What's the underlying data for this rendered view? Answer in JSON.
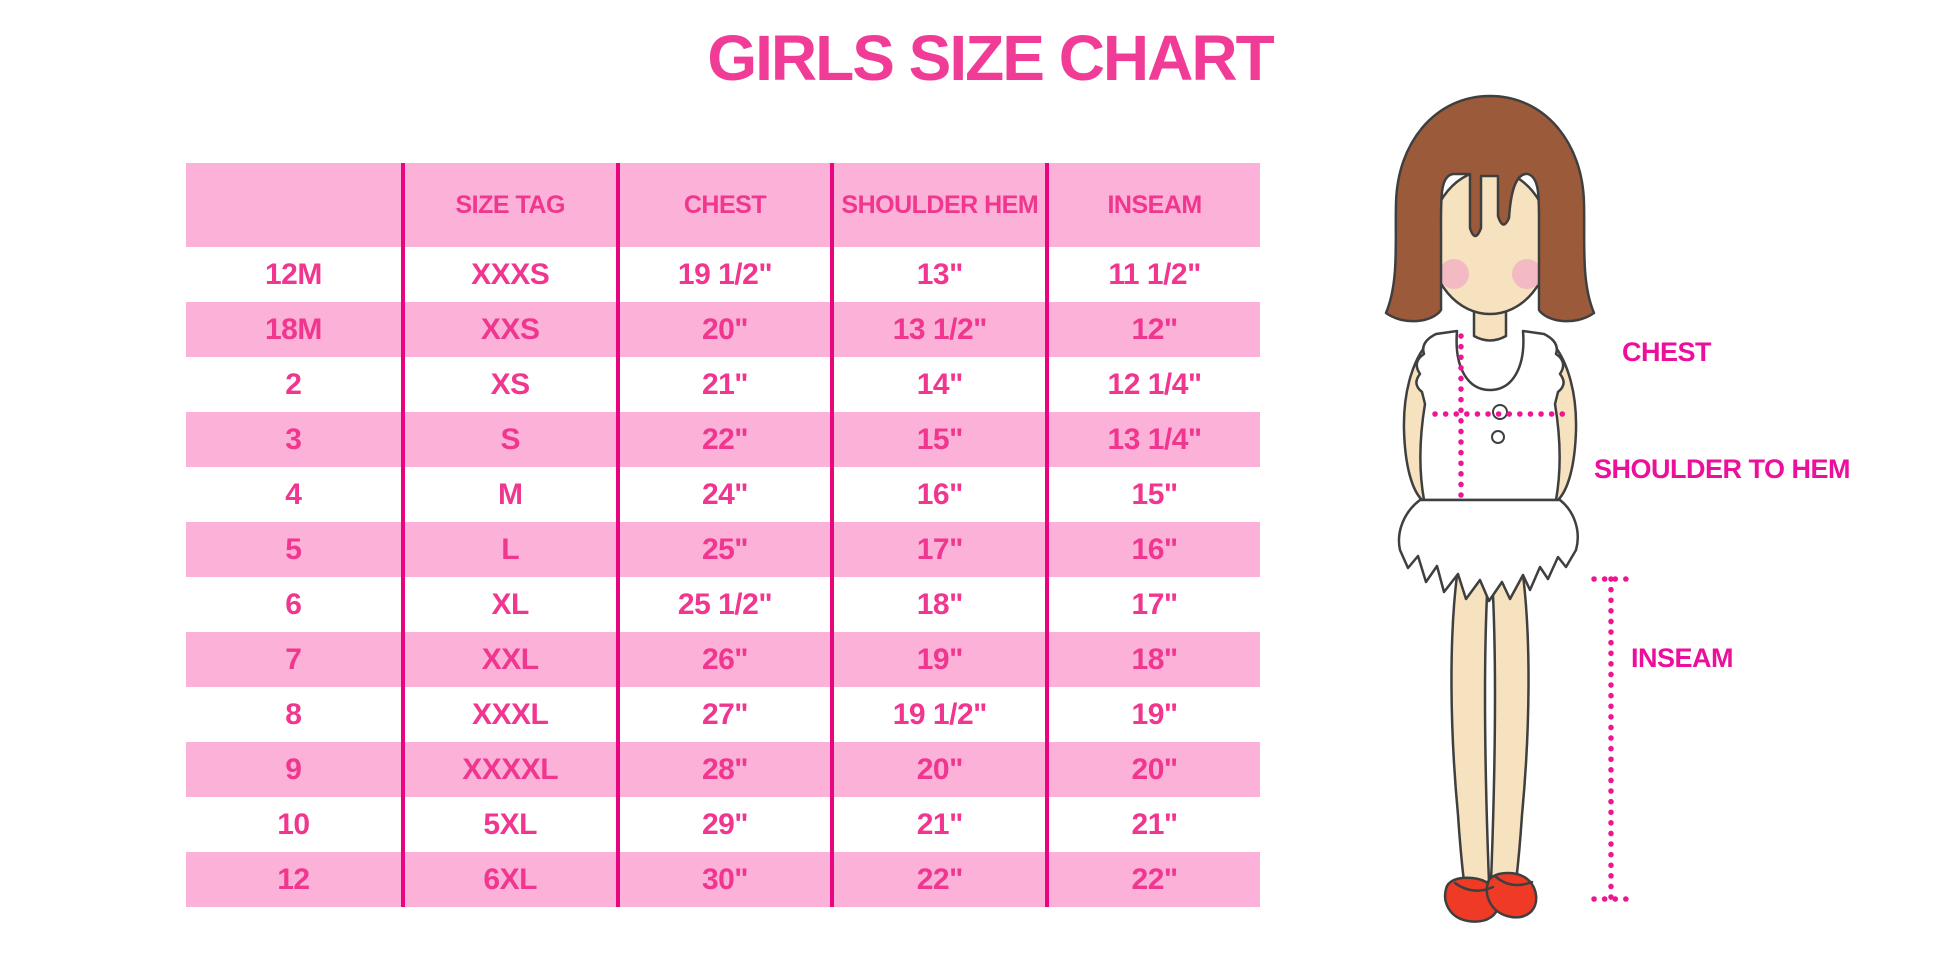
{
  "title": "GIRLS SIZE CHART",
  "chart_data": {
    "type": "table",
    "title": "GIRLS SIZE CHART",
    "columns": [
      "",
      "SIZE TAG",
      "CHEST",
      "SHOULDER HEM",
      "INSEAM"
    ],
    "rows": [
      [
        "12M",
        "XXXS",
        "19 1/2\"",
        "13\"",
        "11 1/2\""
      ],
      [
        "18M",
        "XXS",
        "20\"",
        "13 1/2\"",
        "12\""
      ],
      [
        "2",
        "XS",
        "21\"",
        "14\"",
        "12 1/4\""
      ],
      [
        "3",
        "S",
        "22\"",
        "15\"",
        "13 1/4\""
      ],
      [
        "4",
        "M",
        "24\"",
        "16\"",
        "15\""
      ],
      [
        "5",
        "L",
        "25\"",
        "17\"",
        "16\""
      ],
      [
        "6",
        "XL",
        "25 1/2\"",
        "18\"",
        "17\""
      ],
      [
        "7",
        "XXL",
        "26\"",
        "19\"",
        "18\""
      ],
      [
        "8",
        "XXXL",
        "27\"",
        "19 1/2\"",
        "19\""
      ],
      [
        "9",
        "XXXXL",
        "28\"",
        "20\"",
        "20\""
      ],
      [
        "10",
        "5XL",
        "29\"",
        "21\"",
        "21\""
      ],
      [
        "12",
        "6XL",
        "30\"",
        "22\"",
        "22\""
      ]
    ],
    "row_striping": "alternating white and pink, header pink",
    "legend_position": "none"
  },
  "figure": {
    "labels": {
      "chest": "CHEST",
      "shoulder_to_hem": "SHOULDER TO HEM",
      "inseam": "INSEAM"
    }
  },
  "colors": {
    "row_pink": "#FBB1D8",
    "table_text_pink": "#F0368F",
    "separator_line": "#E8057F",
    "title_pink": "#F03C96",
    "label_magenta": "#EC0F9B",
    "dotted_line_magenta": "#F01493",
    "hair_brown": "#9B5B3B",
    "skin": "#F6E2BF",
    "blush": "#F4A9C4",
    "shoe_red": "#EF3B25"
  }
}
